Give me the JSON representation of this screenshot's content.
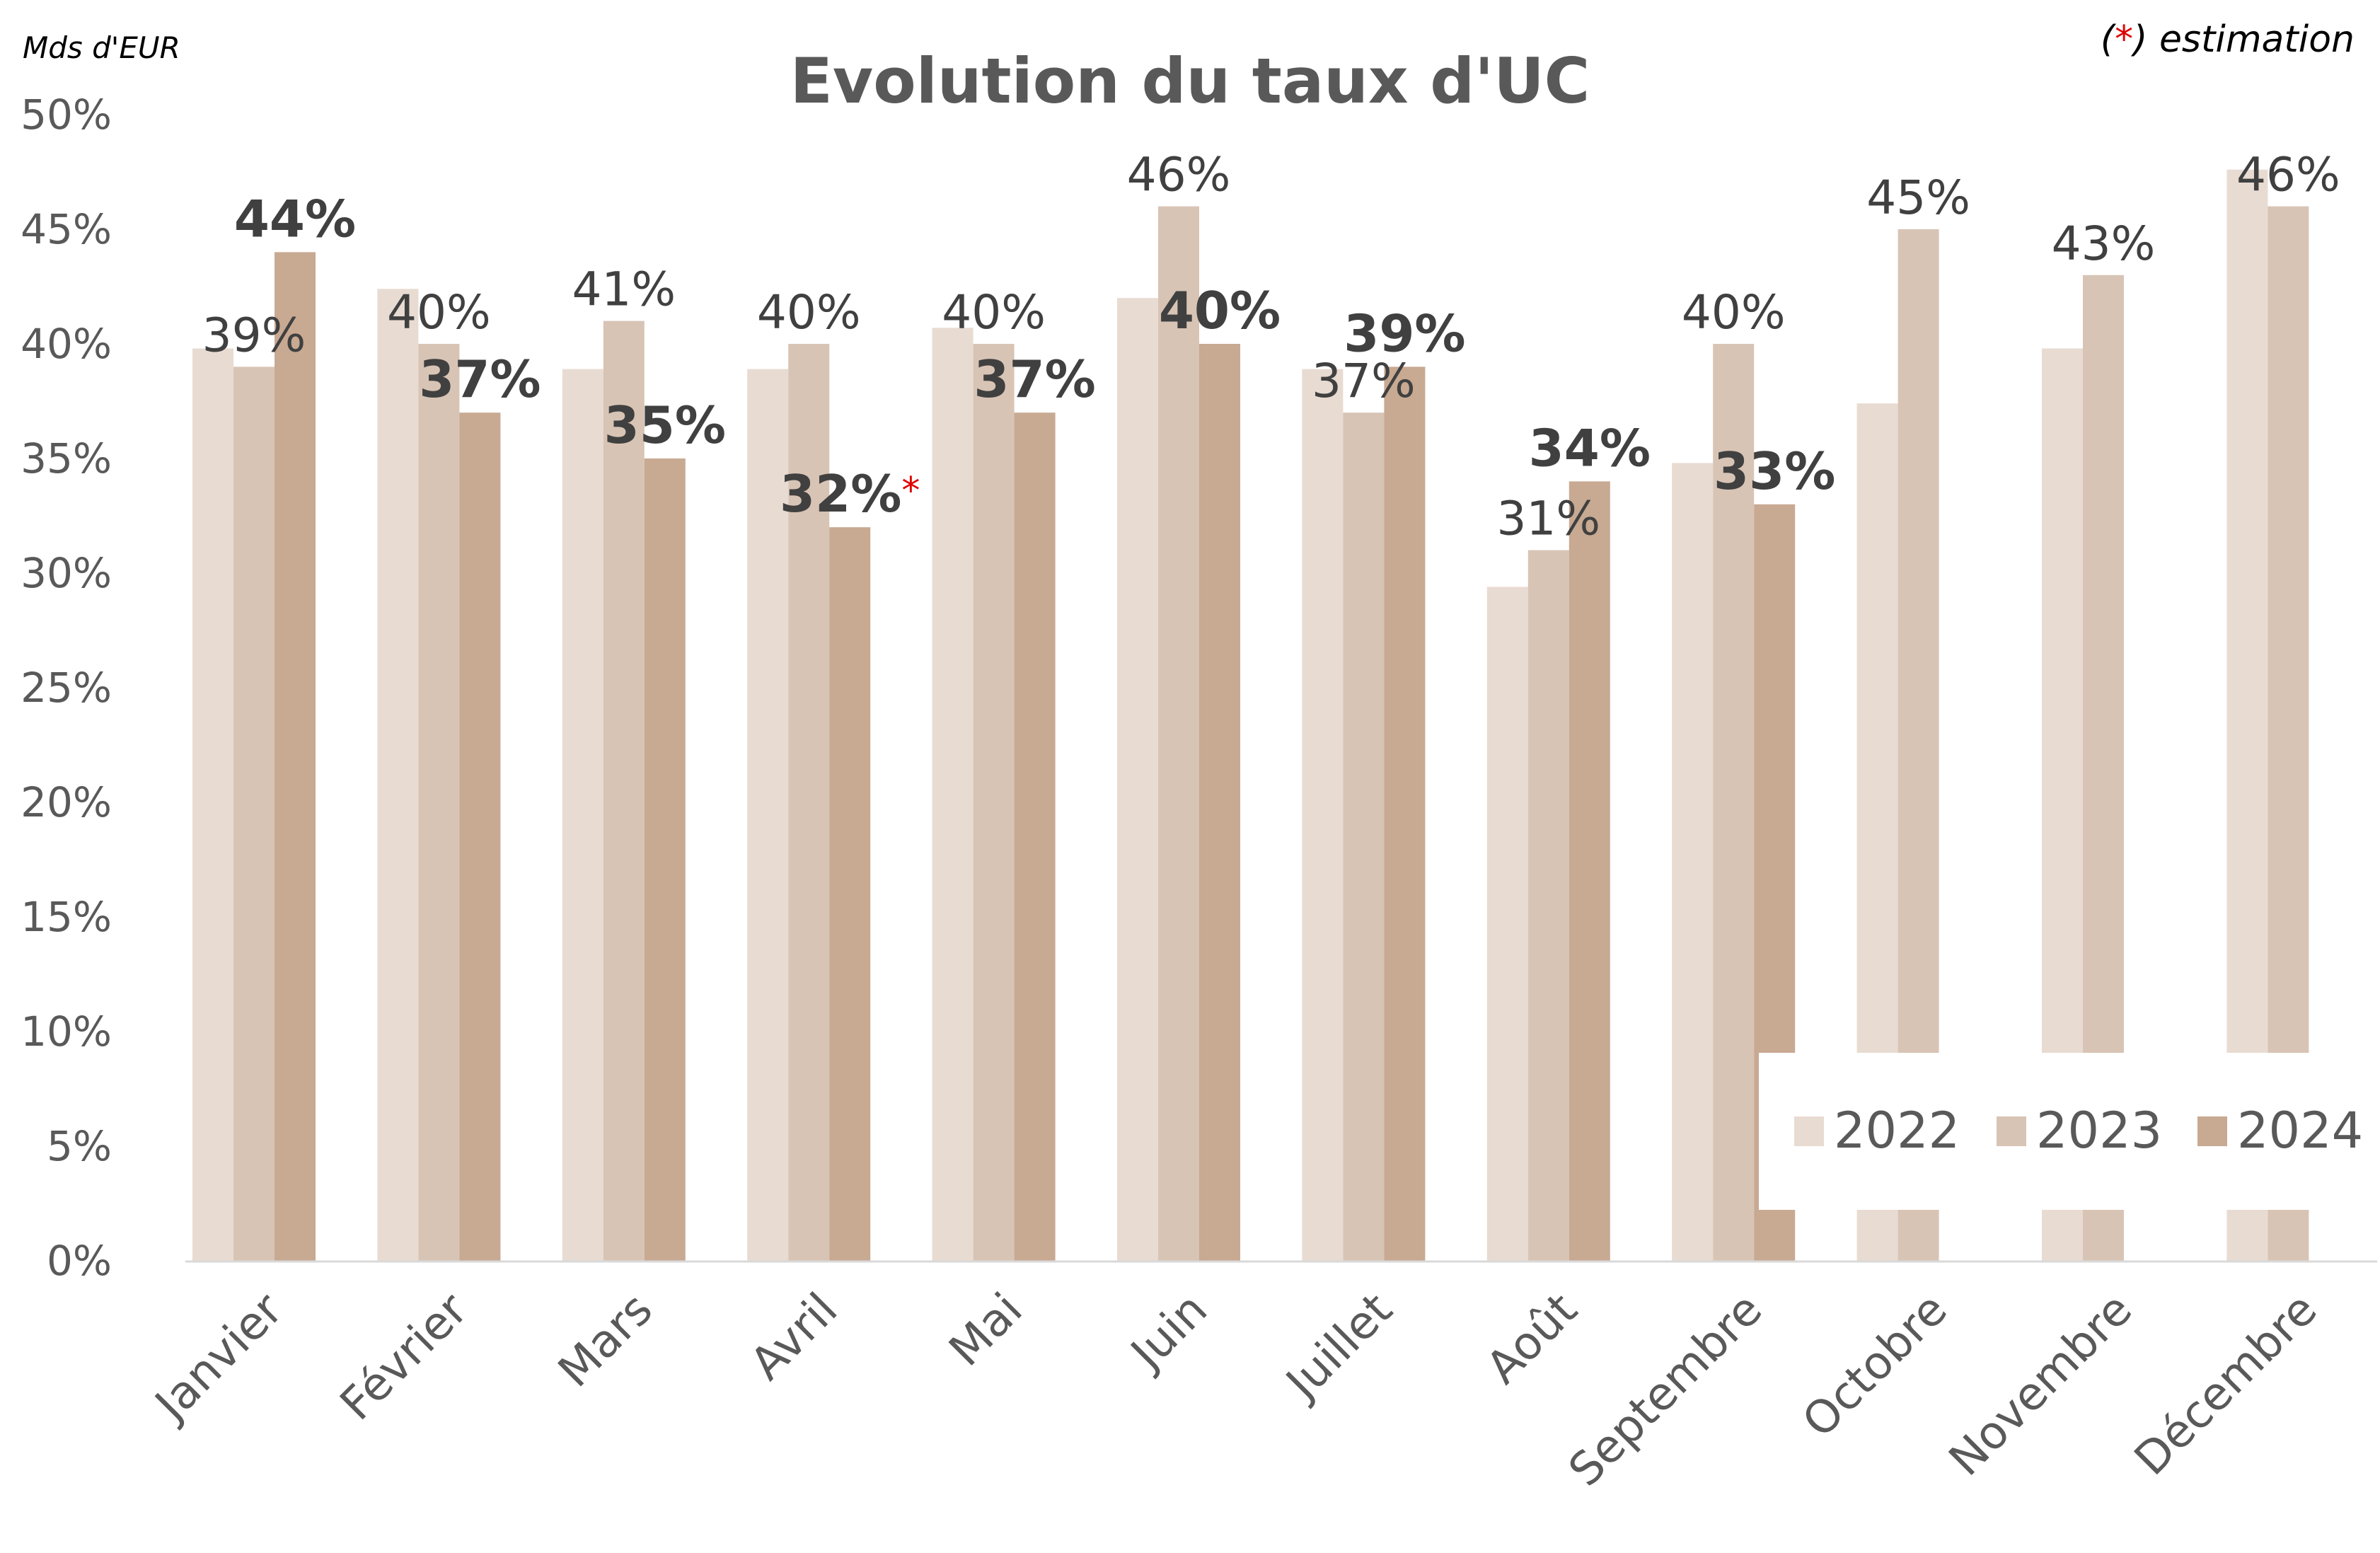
{
  "header": {
    "unit_label": "Mds d'EUR",
    "title": "Evolution du taux d'UC",
    "note_open": "(",
    "note_star": "*",
    "note_rest": ") estimation"
  },
  "colors": {
    "s2022": "#e8dbd2",
    "s2023": "#d8c4b5",
    "s2024": "#c8a992",
    "axis_text": "#595959",
    "label_text": "#404040",
    "star": "#e00000",
    "axis_line": "#d9d9d9"
  },
  "chart_data": {
    "type": "bar",
    "title": "Evolution du taux d'UC",
    "ylabel": "Mds d'EUR",
    "xlabel": "",
    "ylim": [
      0,
      50
    ],
    "y_ticks": [
      "0%",
      "5%",
      "10%",
      "15%",
      "20%",
      "25%",
      "30%",
      "35%",
      "40%",
      "45%",
      "50%"
    ],
    "grid": false,
    "legend_position": "bottom-right",
    "categories": [
      "Janvier",
      "Février",
      "Mars",
      "Avril",
      "Mai",
      "Juin",
      "Juillet",
      "Août",
      "Septembre",
      "Octobre",
      "Novembre",
      "Décembre"
    ],
    "series": [
      {
        "name": "2022",
        "values": [
          39.8,
          42.4,
          38.9,
          38.9,
          40.7,
          42.0,
          38.9,
          29.4,
          34.8,
          37.4,
          39.8,
          47.6
        ],
        "labels": [
          null,
          null,
          null,
          null,
          null,
          null,
          null,
          null,
          null,
          null,
          null,
          null
        ]
      },
      {
        "name": "2023",
        "values": [
          39,
          40,
          41,
          40,
          40,
          46,
          37,
          31,
          40,
          45,
          43,
          46
        ],
        "labels": [
          "39%",
          "40%",
          "41%",
          "40%",
          "40%",
          "46%",
          "37%",
          "31%",
          "40%",
          "45%",
          "43%",
          "46%"
        ]
      },
      {
        "name": "2024",
        "values": [
          44,
          37,
          35,
          32,
          37,
          40,
          39,
          34,
          33,
          null,
          null,
          null
        ],
        "labels": [
          "44%",
          "37%",
          "35%",
          "32%",
          "37%",
          "40%",
          "39%",
          "34%",
          "33%",
          null,
          null,
          null
        ],
        "estimated": [
          false,
          false,
          false,
          true,
          false,
          false,
          false,
          false,
          false,
          false,
          false,
          false
        ]
      }
    ],
    "estimate_marker": "*"
  }
}
